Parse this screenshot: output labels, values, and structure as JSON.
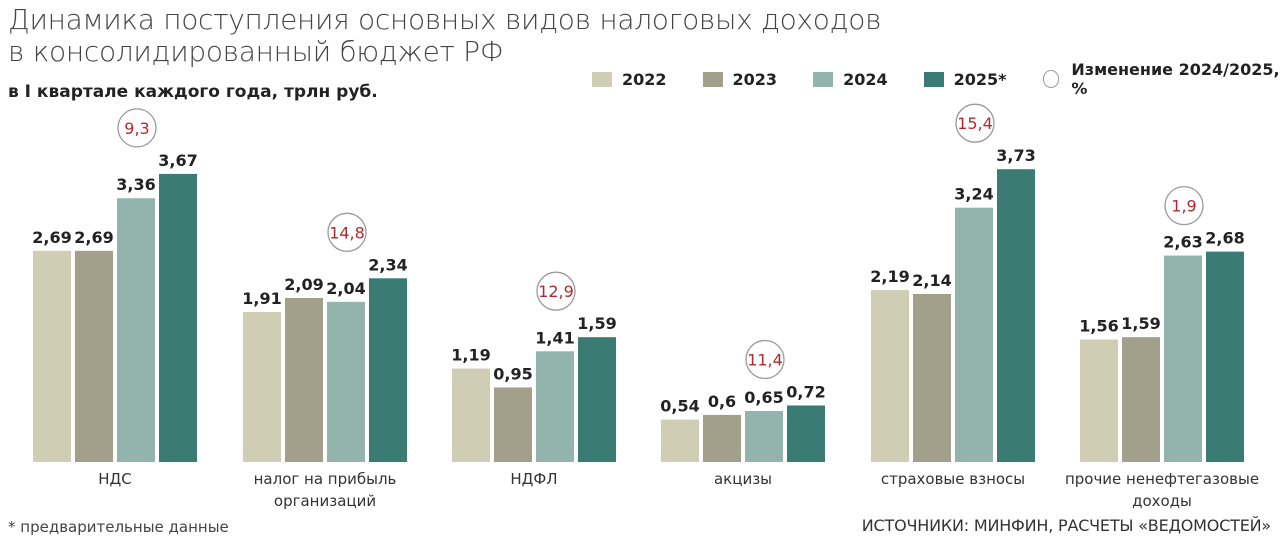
{
  "title": "Динамика поступления основных видов налоговых доходов в консолидированный бюджет РФ",
  "subtitle": "в I квартале каждого года, трлн руб.",
  "footnote": "* предварительные данные",
  "source": "ИСТОЧНИКИ: МИНФИН, РАСЧЕТЫ «ВЕДОМОСТЕЙ»",
  "colors": {
    "2022": "#cfcdb4",
    "2023": "#a29f8a",
    "2024": "#93b4ad",
    "2025": "#3a7c73",
    "change_text": "#b22a2f",
    "change_circle": "#9a9a9a"
  },
  "legend": {
    "items": [
      {
        "label": "2022",
        "color": "#cfcdb4"
      },
      {
        "label": "2023",
        "color": "#a29f8a"
      },
      {
        "label": "2024",
        "color": "#93b4ad"
      },
      {
        "label": "2025*",
        "color": "#3a7c73"
      }
    ],
    "change_label": "Изменение 2024/2025, %"
  },
  "chart_data": {
    "type": "bar",
    "value_unit": "трлн руб.",
    "ylim": [
      0,
      4.0
    ],
    "grid": false,
    "legend_position": "top-right",
    "categories": [
      "НДС",
      "налог на прибыль организаций",
      "НДФЛ",
      "акцизы",
      "страховые взносы",
      "прочие ненефтегазовые доходы"
    ],
    "series": [
      {
        "name": "2022",
        "values": [
          2.69,
          1.91,
          1.19,
          0.54,
          2.19,
          1.56
        ]
      },
      {
        "name": "2023",
        "values": [
          2.69,
          2.09,
          0.95,
          0.6,
          2.14,
          1.59
        ]
      },
      {
        "name": "2024",
        "values": [
          3.36,
          2.04,
          1.41,
          0.65,
          3.24,
          2.63
        ]
      },
      {
        "name": "2025*",
        "values": [
          3.67,
          2.34,
          1.59,
          0.72,
          3.73,
          2.68
        ]
      }
    ],
    "data_labels": [
      [
        "2,69",
        "2,69",
        "3,36",
        "3,67"
      ],
      [
        "1,91",
        "2,09",
        "2,04",
        "2,34"
      ],
      [
        "1,19",
        "0,95",
        "1,41",
        "1,59"
      ],
      [
        "0,54",
        "0,6",
        "0,65",
        "0,72"
      ],
      [
        "2,19",
        "2,14",
        "3,24",
        "3,73"
      ],
      [
        "1,56",
        "1,59",
        "2,63",
        "2,68"
      ]
    ],
    "change_pct": [
      9.3,
      14.8,
      12.9,
      11.4,
      15.4,
      1.9
    ],
    "change_labels": [
      "9,3",
      "14,8",
      "12,9",
      "11,4",
      "15,4",
      "1,9"
    ],
    "category_labels": [
      [
        "НДС"
      ],
      [
        "налог на прибыль",
        "организаций"
      ],
      [
        "НДФЛ"
      ],
      [
        "акцизы"
      ],
      [
        "страховые взносы"
      ],
      [
        "прочие ненефтегазовые",
        "доходы"
      ]
    ]
  }
}
